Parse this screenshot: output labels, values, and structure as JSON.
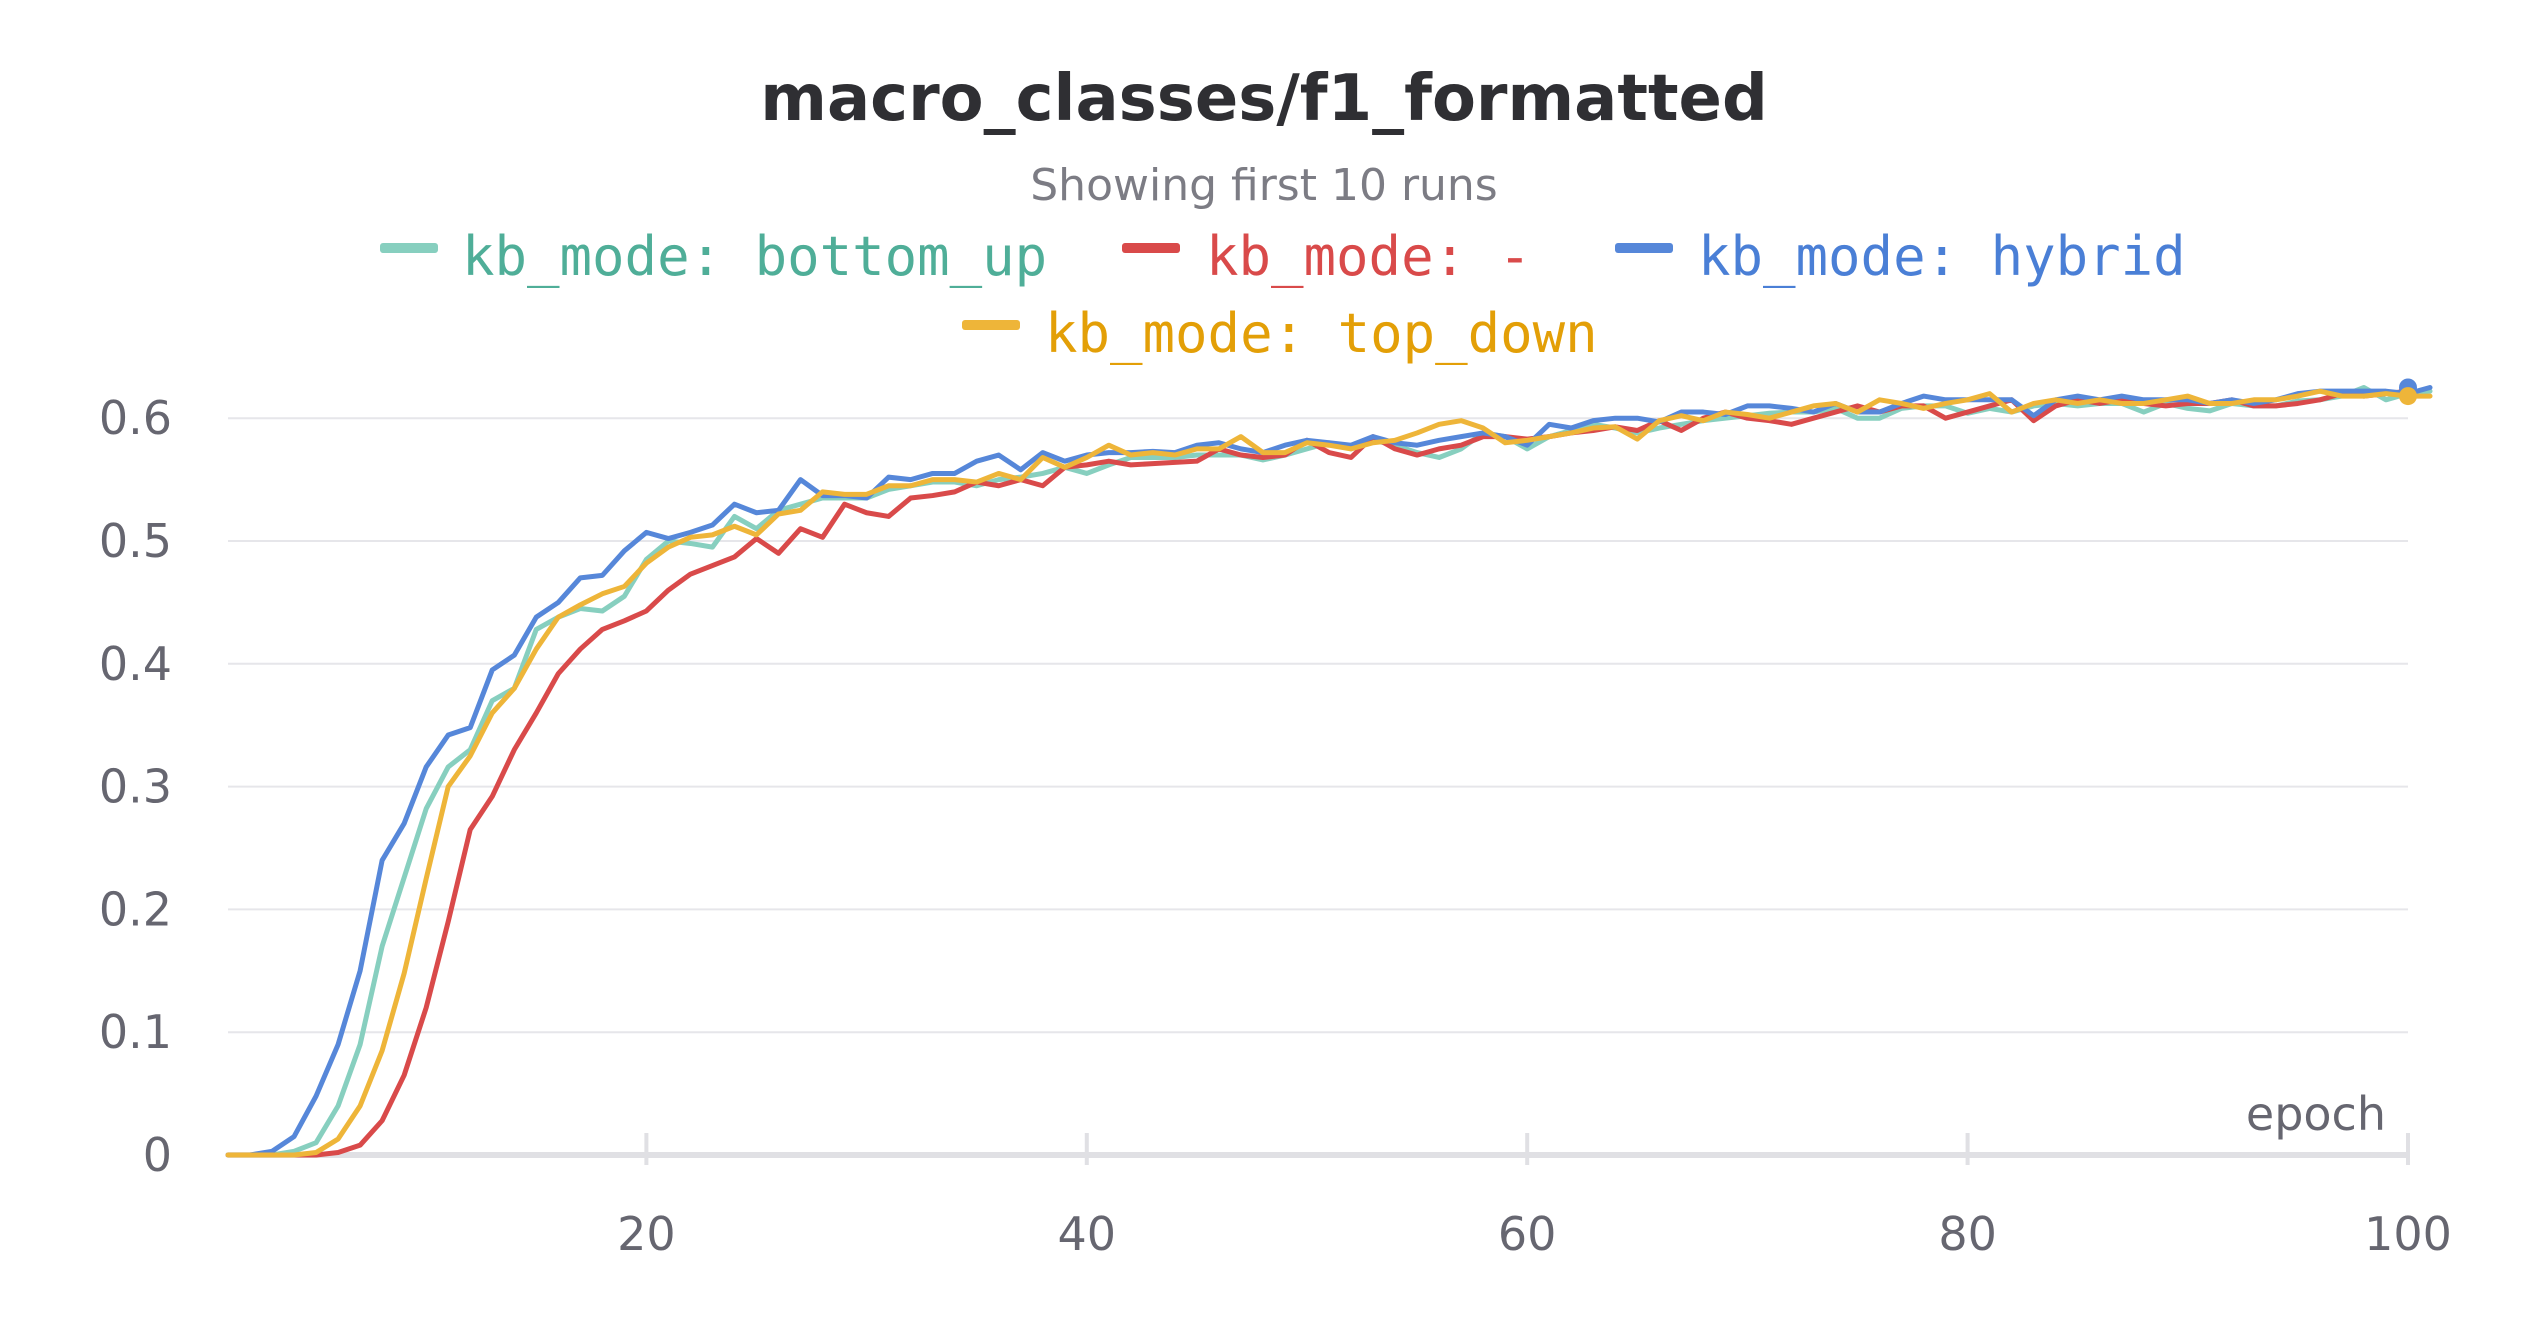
{
  "chart_data": {
    "type": "line",
    "title": "macro_classes/f1_formatted",
    "subtitle": "Showing first 10 runs",
    "xlabel": "epoch",
    "ylabel": "",
    "xlim": [
      1,
      100
    ],
    "ylim": [
      0,
      0.63
    ],
    "x_ticks": [
      20,
      40,
      60,
      80,
      100
    ],
    "y_ticks": [
      0,
      0.1,
      0.2,
      0.3,
      0.4,
      0.5,
      0.6
    ],
    "x_tick_labels": [
      "20",
      "40",
      "60",
      "80",
      "100"
    ],
    "y_tick_labels": [
      "0",
      "0.1",
      "0.2",
      "0.3",
      "0.4",
      "0.5",
      "0.6"
    ],
    "grid": true,
    "legend_placement": "top",
    "series": [
      {
        "name": "kb_mode: bottom_up",
        "color": "#87cfbf",
        "label_color": "#4fae98",
        "values": [
          0,
          0,
          0,
          0.003,
          0.01,
          0.04,
          0.09,
          0.17,
          0.226,
          0.282,
          0.316,
          0.33,
          0.37,
          0.38,
          0.428,
          0.438,
          0.445,
          0.443,
          0.455,
          0.485,
          0.5,
          0.498,
          0.495,
          0.52,
          0.51,
          0.525,
          0.53,
          0.535,
          0.535,
          0.535,
          0.542,
          0.545,
          0.548,
          0.548,
          0.545,
          0.55,
          0.552,
          0.555,
          0.56,
          0.555,
          0.562,
          0.568,
          0.568,
          0.568,
          0.57,
          0.57,
          0.57,
          0.566,
          0.57,
          0.575,
          0.58,
          0.575,
          0.582,
          0.578,
          0.572,
          0.568,
          0.575,
          0.588,
          0.585,
          0.575,
          0.585,
          0.59,
          0.595,
          0.592,
          0.588,
          0.592,
          0.595,
          0.598,
          0.6,
          0.602,
          0.604,
          0.605,
          0.605,
          0.608,
          0.6,
          0.6,
          0.608,
          0.61,
          0.61,
          0.604,
          0.608,
          0.605,
          0.61,
          0.612,
          0.61,
          0.612,
          0.612,
          0.605,
          0.612,
          0.608,
          0.606,
          0.612,
          0.61,
          0.61,
          0.614,
          0.615,
          0.618,
          0.625,
          0.615,
          0.62,
          0.622
        ]
      },
      {
        "name": "kb_mode: -",
        "color": "#d94a4a",
        "label_color": "#d94a4a",
        "values": [
          0,
          0,
          0,
          0,
          0,
          0.002,
          0.008,
          0.028,
          0.065,
          0.12,
          0.19,
          0.265,
          0.292,
          0.33,
          0.36,
          0.392,
          0.412,
          0.428,
          0.435,
          0.443,
          0.46,
          0.473,
          0.48,
          0.487,
          0.502,
          0.49,
          0.51,
          0.503,
          0.53,
          0.523,
          0.52,
          0.535,
          0.537,
          0.54,
          0.548,
          0.545,
          0.55,
          0.545,
          0.56,
          0.562,
          0.565,
          0.562,
          0.563,
          0.564,
          0.565,
          0.575,
          0.57,
          0.568,
          0.57,
          0.582,
          0.572,
          0.568,
          0.585,
          0.575,
          0.57,
          0.575,
          0.578,
          0.585,
          0.585,
          0.583,
          0.585,
          0.588,
          0.59,
          0.593,
          0.59,
          0.598,
          0.59,
          0.6,
          0.605,
          0.6,
          0.598,
          0.595,
          0.6,
          0.605,
          0.61,
          0.605,
          0.61,
          0.61,
          0.6,
          0.605,
          0.61,
          0.615,
          0.598,
          0.61,
          0.615,
          0.612,
          0.615,
          0.612,
          0.61,
          0.612,
          0.612,
          0.615,
          0.61,
          0.61,
          0.612,
          0.615,
          0.62,
          0.618,
          0.62,
          0.622
        ]
      },
      {
        "name": "kb_mode: hybrid",
        "color": "#5687d9",
        "label_color": "#4a7fd6",
        "values": [
          0,
          0,
          0.003,
          0.015,
          0.048,
          0.09,
          0.15,
          0.24,
          0.27,
          0.316,
          0.342,
          0.348,
          0.395,
          0.407,
          0.438,
          0.45,
          0.47,
          0.472,
          0.492,
          0.507,
          0.502,
          0.507,
          0.513,
          0.53,
          0.523,
          0.525,
          0.55,
          0.537,
          0.537,
          0.535,
          0.552,
          0.55,
          0.555,
          0.555,
          0.565,
          0.57,
          0.558,
          0.572,
          0.565,
          0.57,
          0.572,
          0.572,
          0.573,
          0.572,
          0.578,
          0.58,
          0.575,
          0.572,
          0.578,
          0.582,
          0.58,
          0.578,
          0.585,
          0.58,
          0.578,
          0.582,
          0.585,
          0.588,
          0.585,
          0.578,
          0.595,
          0.592,
          0.598,
          0.6,
          0.6,
          0.597,
          0.605,
          0.605,
          0.603,
          0.61,
          0.61,
          0.608,
          0.605,
          0.612,
          0.605,
          0.605,
          0.612,
          0.618,
          0.615,
          0.615,
          0.615,
          0.615,
          0.602,
          0.615,
          0.618,
          0.615,
          0.618,
          0.615,
          0.615,
          0.615,
          0.612,
          0.615,
          0.612,
          0.615,
          0.62,
          0.622,
          0.622,
          0.622,
          0.622,
          0.62,
          0.625
        ]
      },
      {
        "name": "kb_mode: top_down",
        "color": "#eeb539",
        "label_color": "#e39f07",
        "values": [
          0,
          0,
          0,
          0,
          0.002,
          0.013,
          0.04,
          0.085,
          0.148,
          0.225,
          0.3,
          0.325,
          0.36,
          0.38,
          0.412,
          0.438,
          0.448,
          0.457,
          0.463,
          0.482,
          0.495,
          0.503,
          0.505,
          0.512,
          0.505,
          0.522,
          0.525,
          0.54,
          0.538,
          0.538,
          0.545,
          0.545,
          0.55,
          0.55,
          0.548,
          0.555,
          0.55,
          0.568,
          0.56,
          0.568,
          0.578,
          0.57,
          0.572,
          0.57,
          0.575,
          0.575,
          0.585,
          0.572,
          0.572,
          0.58,
          0.578,
          0.575,
          0.58,
          0.582,
          0.588,
          0.595,
          0.598,
          0.592,
          0.58,
          0.582,
          0.585,
          0.588,
          0.592,
          0.593,
          0.583,
          0.598,
          0.602,
          0.598,
          0.605,
          0.603,
          0.6,
          0.605,
          0.61,
          0.612,
          0.605,
          0.615,
          0.612,
          0.608,
          0.612,
          0.615,
          0.62,
          0.605,
          0.612,
          0.615,
          0.612,
          0.615,
          0.612,
          0.612,
          0.615,
          0.618,
          0.612,
          0.612,
          0.615,
          0.615,
          0.618,
          0.622,
          0.618,
          0.618,
          0.62,
          0.618,
          0.618
        ]
      }
    ]
  }
}
